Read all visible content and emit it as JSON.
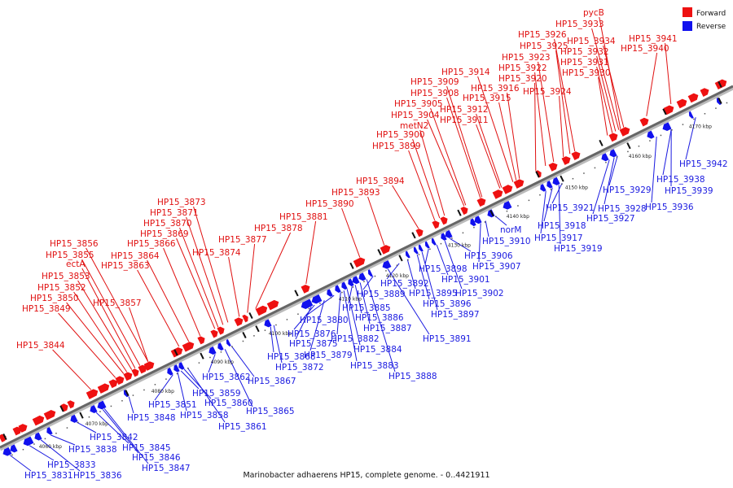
{
  "legend": {
    "forward_label": "Forward",
    "reverse_label": "Reverse",
    "forward_color": "#ee1111",
    "reverse_color": "#1111ee"
  },
  "caption": "Marinobacter adhaerens HP15, complete genome. - 0..4421911",
  "scale": {
    "unit": "kbp",
    "ticks": [
      "4060 kbp",
      "4070 kbp",
      "4080 kbp",
      "4090 kbp",
      "4100 kbp",
      "4110 kbp",
      "4120 kbp",
      "4130 kbp",
      "4140 kbp",
      "4150 kbp",
      "4160 kbp",
      "4170 kbp"
    ]
  },
  "forward_labels": [
    "HP15_3844",
    "HP15_3849",
    "HP15_3850",
    "HP15_3852",
    "HP15_3853",
    "ectA",
    "HP15_3855",
    "HP15_3856",
    "HP15_3857",
    "HP15_3863",
    "HP15_3864",
    "HP15_3866",
    "HP15_3869",
    "HP15_3870",
    "HP15_3871",
    "HP15_3873",
    "HP15_3874",
    "HP15_3877",
    "HP15_3878",
    "HP15_3881",
    "HP15_3890",
    "HP15_3893",
    "HP15_3894",
    "HP15_3899",
    "HP15_3900",
    "metN2",
    "HP15_3904",
    "HP15_3905",
    "HP15_3908",
    "HP15_3909",
    "HP15_3911",
    "HP15_3912",
    "HP15_3914",
    "HP15_3915",
    "HP15_3916",
    "HP15_3920",
    "HP15_3922",
    "HP15_3923",
    "HP15_3924",
    "HP15_3925",
    "HP15_3926",
    "HP15_3930",
    "HP15_3931",
    "HP15_3932",
    "HP15_3933",
    "HP15_3934",
    "pycB",
    "HP15_3940",
    "HP15_3941"
  ],
  "reverse_labels": [
    "HP15_3831",
    "HP15_3833",
    "HP15_3836",
    "HP15_3838",
    "HP15_3842",
    "HP15_3845",
    "HP15_3846",
    "HP15_3847",
    "HP15_3848",
    "HP15_3851",
    "HP15_3858",
    "HP15_3859",
    "HP15_3860",
    "HP15_3861",
    "HP15_3862",
    "HP15_3865",
    "HP15_3867",
    "HP15_3868",
    "HP15_3872",
    "HP15_3875",
    "HP15_3876",
    "HP15_3879",
    "HP15_3880",
    "HP15_3882",
    "HP15_3883",
    "HP15_3884",
    "HP15_3885",
    "HP15_3886",
    "HP15_3887",
    "HP15_3888",
    "HP15_3889",
    "HP15_3891",
    "HP15_3892",
    "HP15_3895",
    "HP15_3896",
    "HP15_3897",
    "HP15_3898",
    "HP15_3901",
    "HP15_3902",
    "HP15_3906",
    "HP15_3907",
    "HP15_3910",
    "norM",
    "HP15_3917",
    "HP15_3918",
    "HP15_3919",
    "HP15_3921",
    "HP15_3927",
    "HP15_3928",
    "HP15_3929",
    "HP15_3936",
    "HP15_3938",
    "HP15_3939",
    "HP15_3942"
  ]
}
